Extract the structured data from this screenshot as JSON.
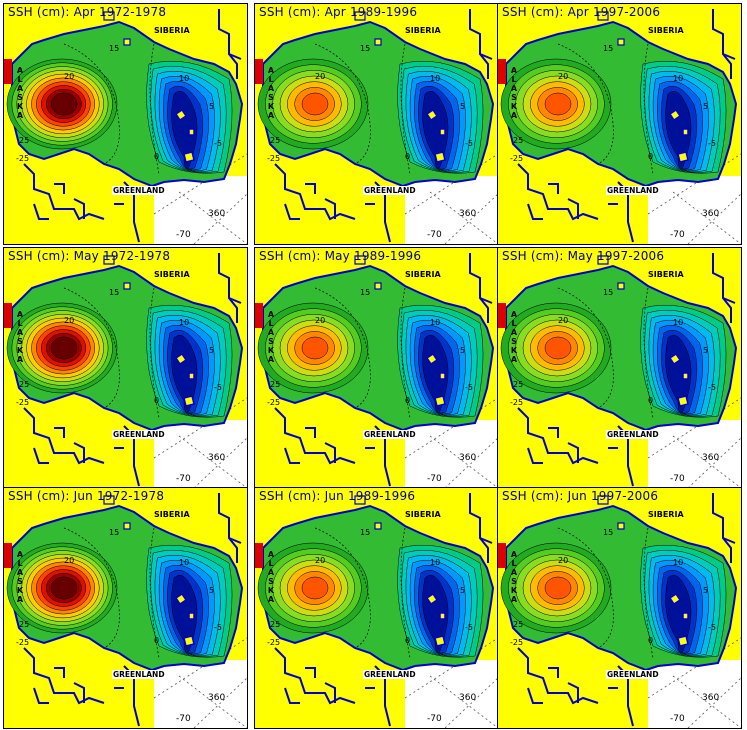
{
  "map": {
    "panels": [
      {
        "title": "SSH (cm): Apr 1972-1978",
        "month": "Apr",
        "period": "1972-1978",
        "max_level": "hi"
      },
      {
        "title": "SSH (cm): Apr 1989-1996",
        "month": "Apr",
        "period": "1989-1996",
        "max_level": "mid"
      },
      {
        "title": "SSH (cm): Apr 1997-2006",
        "month": "Apr",
        "period": "1997-2006",
        "max_level": "low"
      },
      {
        "title": "SSH (cm): May 1972-1978",
        "month": "May",
        "period": "1972-1978",
        "max_level": "hi"
      },
      {
        "title": "SSH (cm): May 1989-1996",
        "month": "May",
        "period": "1989-1996",
        "max_level": "mid"
      },
      {
        "title": "SSH (cm): May  1997-2006",
        "month": "May",
        "period": "1997-2006",
        "max_level": "low"
      },
      {
        "title": "SSH (cm): Jun 1972-1978",
        "month": "Jun",
        "period": "1972-1978",
        "max_level": "hi"
      },
      {
        "title": "SSH (cm): Jun 1989-1996",
        "month": "Jun",
        "period": "1989-1996",
        "max_level": "mid"
      },
      {
        "title": "SSH (cm): Jun  1997-2006",
        "month": "Jun",
        "period": "1997-2006",
        "max_level": "low"
      }
    ],
    "labels": {
      "siberia": "SIBERIA",
      "greenland": "GREENLAND",
      "alaska": "ALASKA",
      "lon_360": "360",
      "lat_70": "-70"
    },
    "contour_labels": [
      "25",
      "20",
      "15",
      "10",
      "5",
      "0",
      "-5",
      "-25"
    ],
    "colors": {
      "land": "#ffff00",
      "coast": "#0000cd",
      "ocean_out": "#ffffff",
      "high": "#8b0000",
      "mid_high": "#ff4500",
      "mid": "#32cd32",
      "low": "#00bfff",
      "lowest": "#0000cd"
    }
  }
}
